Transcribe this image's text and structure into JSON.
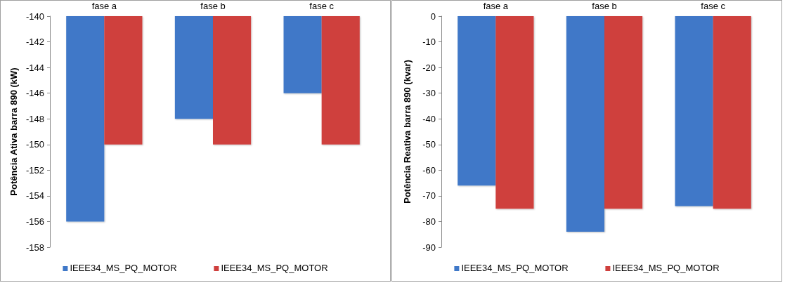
{
  "chart_data": [
    {
      "type": "bar",
      "ylabel": "Potência Ativa barra 890 (kW)",
      "categories": [
        "fase a",
        "fase b",
        "fase c"
      ],
      "series": [
        {
          "name": "IEEE34_MS_PQ_MOTOR",
          "color": "#3f78c8",
          "values": [
            -156,
            -148,
            -146
          ]
        },
        {
          "name": "IEEE34_MS_PQ_MOTOR",
          "color": "#cf3f3d",
          "values": [
            -150,
            -150,
            -150
          ]
        }
      ],
      "ylim": [
        -158,
        -140
      ],
      "yticks": [
        -158,
        -156,
        -154,
        -152,
        -150,
        -148,
        -146,
        -144,
        -142,
        -140
      ],
      "grid": false,
      "legend": "bottom"
    },
    {
      "type": "bar",
      "ylabel": "Potência Reativa barra 890 (kvar)",
      "categories": [
        "fase a",
        "fase b",
        "fase c"
      ],
      "series": [
        {
          "name": "IEEE34_MS_PQ_MOTOR",
          "color": "#3f78c8",
          "values": [
            -66,
            -84,
            -74
          ]
        },
        {
          "name": "IEEE34_MS_PQ_MOTOR",
          "color": "#cf3f3d",
          "values": [
            -75,
            -75,
            -75
          ]
        }
      ],
      "ylim": [
        -90,
        0
      ],
      "yticks": [
        -90,
        -80,
        -70,
        -60,
        -50,
        -40,
        -30,
        -20,
        -10,
        0
      ],
      "grid": false,
      "legend": "bottom"
    }
  ]
}
